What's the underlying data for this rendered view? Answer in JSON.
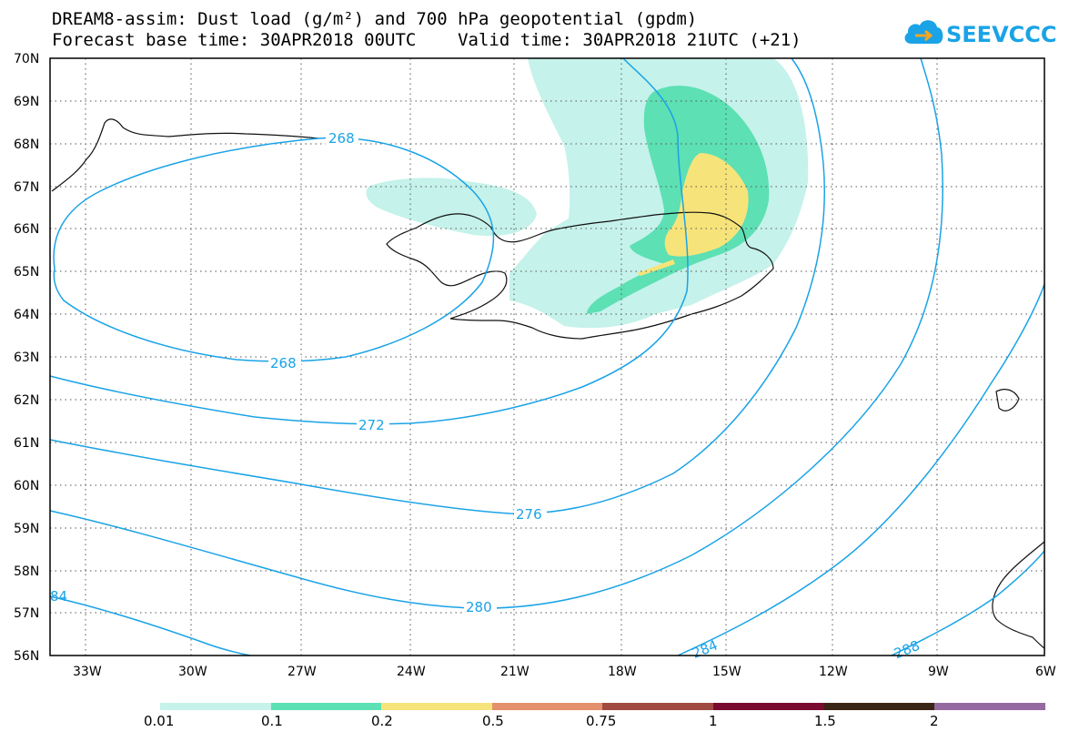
{
  "title": {
    "line1": "DREAM8-assim: Dust load (g/m²) and 700 hPa geopotential (gpdm)",
    "line2": "Forecast base time: 30APR2018 00UTC    Valid time: 30APR2018 21UTC (+21)"
  },
  "logo": {
    "text": "SEEVCCC",
    "icon": "cloud-arrow-icon",
    "color": "#1aa3e6"
  },
  "map": {
    "lat_labels": [
      "70N",
      "69N",
      "68N",
      "67N",
      "66N",
      "65N",
      "64N",
      "63N",
      "62N",
      "61N",
      "60N",
      "59N",
      "58N",
      "57N",
      "56N"
    ],
    "lon_labels": [
      "33W",
      "30W",
      "27W",
      "24W",
      "21W",
      "18W",
      "15W",
      "12W",
      "9W",
      "6W"
    ],
    "contour_color": "#1aa3e6",
    "contour_labels": [
      "268",
      "268",
      "272",
      "276",
      "280",
      "284",
      "288",
      "84"
    ]
  },
  "colorbar": {
    "labels": [
      "0.01",
      "0.1",
      "0.2",
      "0.5",
      "0.75",
      "1",
      "1.5",
      "2"
    ],
    "colors": [
      "#c5f2ea",
      "#5ce0b4",
      "#f6e47a",
      "#e4906c",
      "#a04a42",
      "#7a0b30",
      "#3a2616",
      "#956aa0"
    ]
  }
}
